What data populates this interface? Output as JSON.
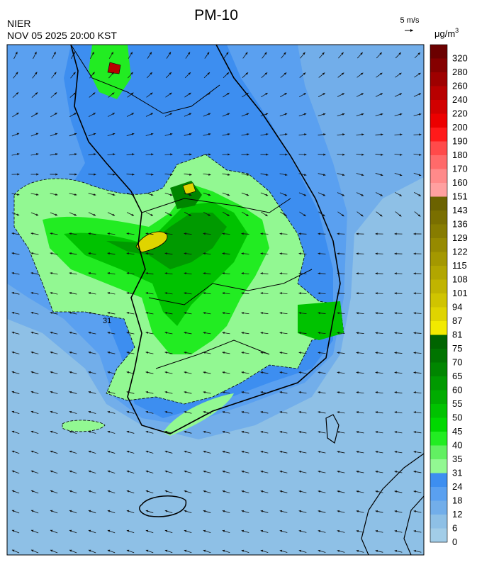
{
  "header": {
    "title": "PM-10",
    "agency": "NIER",
    "datetime": "NOV 05 2025 20:00 KST"
  },
  "wind_scale": "5 m/s",
  "colorbar": {
    "unit": "μg/m",
    "unit_exponent": "3",
    "levels": [
      320,
      280,
      260,
      240,
      220,
      200,
      190,
      180,
      170,
      160,
      151,
      143,
      136,
      129,
      122,
      115,
      108,
      101,
      94,
      87,
      81,
      75,
      70,
      65,
      60,
      55,
      50,
      45,
      40,
      35,
      31,
      24,
      18,
      12,
      6,
      0
    ],
    "colors": [
      "#6b0000",
      "#850000",
      "#9e0000",
      "#b80000",
      "#d20000",
      "#ec0000",
      "#ff1a1a",
      "#ff4a4a",
      "#ff6a6a",
      "#ff8a8a",
      "#ffa0a0",
      "#6b6200",
      "#7a6f00",
      "#877c00",
      "#968a00",
      "#a49800",
      "#b2a600",
      "#c1b400",
      "#d0c400",
      "#dfd400",
      "#f2ea00",
      "#006400",
      "#007400",
      "#008600",
      "#009a00",
      "#00ac00",
      "#00c200",
      "#00d800",
      "#22ec22",
      "#62f062",
      "#92f892",
      "#3d8ef0",
      "#5aa0f0",
      "#72aeea",
      "#8ec0e6",
      "#a2cde8"
    ]
  },
  "map": {
    "contour_label": "31"
  }
}
